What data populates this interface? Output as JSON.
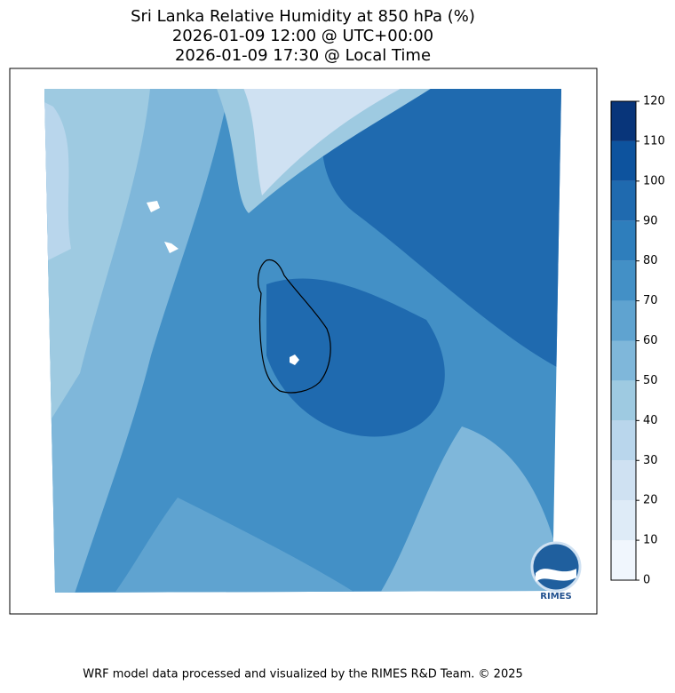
{
  "title": [
    "Sri Lanka Relative Humidity at 850 hPa (%)",
    "2026-01-09 12:00 @ UTC+00:00",
    "2026-01-09 17:30 @ Local Time"
  ],
  "colorbar": {
    "ticks": [
      0,
      10,
      20,
      30,
      40,
      50,
      60,
      70,
      80,
      90,
      100,
      110,
      120
    ],
    "colors": [
      "#f0f6fd",
      "#deebf7",
      "#cfe1f2",
      "#b9d6ec",
      "#9ecae1",
      "#7fb7da",
      "#5fa3d0",
      "#4390c6",
      "#2e7ebc",
      "#1f6aaf",
      "#0d539e",
      "#08357a"
    ]
  },
  "logo": "RIMES",
  "footer": "WRF model data processed and visualized by the RIMES R&D Team. © 2025"
}
